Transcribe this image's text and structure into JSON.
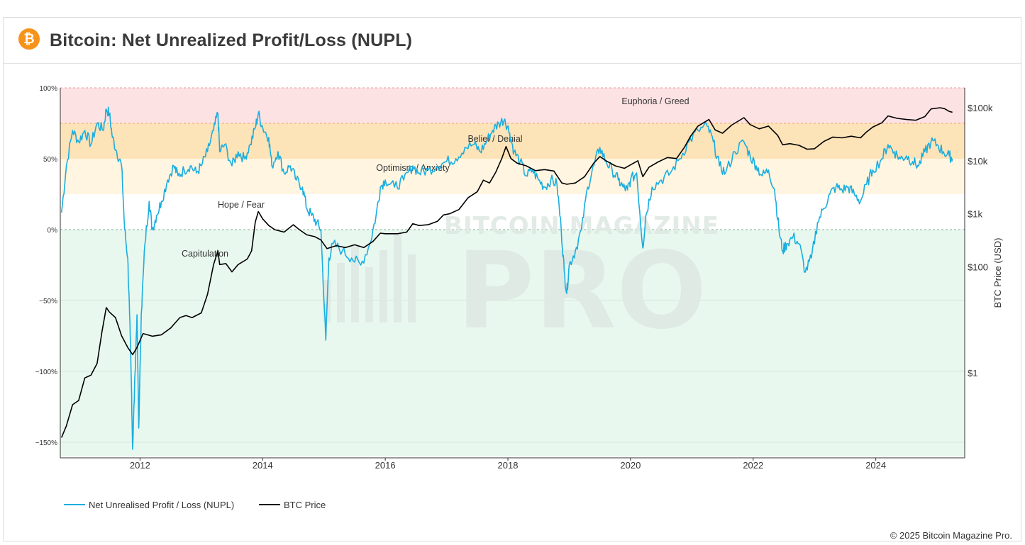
{
  "header": {
    "logo_icon": "bitcoin-icon",
    "logo_glyph": "₿",
    "title": "Bitcoin: Net Unrealized Profit/Loss (NUPL)"
  },
  "footer": {
    "copyright": "© 2025 Bitcoin Magazine Pro."
  },
  "colors": {
    "nupl": "#1aaee0",
    "price": "#000000",
    "euphoria": "#fde2e4",
    "belief": "#fde3b8",
    "optimism": "#fff5e1",
    "hope": "#ffffff",
    "capitulation": "#e9f8ef",
    "watermark": "#dfe9e4"
  },
  "chart_data": {
    "type": "line",
    "title": "Bitcoin: Net Unrealized Profit/Loss (NUPL)",
    "watermark": [
      "BITCOIN MAGAZINE",
      "PRO"
    ],
    "x_axis": {
      "ticks": [
        "2012",
        "2014",
        "2016",
        "2018",
        "2020",
        "2022",
        "2024"
      ],
      "range": [
        2010.7,
        2025.45
      ]
    },
    "y_left": {
      "ticks": [
        "100%",
        "50%",
        "0%",
        "−50%",
        "−100%",
        "−150%"
      ],
      "range": [
        -1.6,
        1.0
      ]
    },
    "y_right": {
      "label": "BTC Price (USD)",
      "ticks": [
        "$100k",
        "$10k",
        "$1k",
        "$100",
        "$1"
      ],
      "type": "log",
      "range_log10": [
        -1.55,
        5.4
      ]
    },
    "zones": [
      {
        "name": "Euphoria / Greed",
        "from": 0.75,
        "to": 1.0
      },
      {
        "name": "Belief / Denial",
        "from": 0.5,
        "to": 0.75
      },
      {
        "name": "Optimism / Anxiety",
        "from": 0.25,
        "to": 0.5
      },
      {
        "name": "Hope / Fear",
        "from": 0.0,
        "to": 0.25
      },
      {
        "name": "Capitulation",
        "from": -1.6,
        "to": 0.0
      }
    ],
    "legend": [
      {
        "name": "Net Unrealised Profit / Loss (NUPL)",
        "color": "#1aaee0"
      },
      {
        "name": "BTC Price",
        "color": "#000000"
      }
    ],
    "series": [
      {
        "name": "Net Unrealised Profit / Loss (NUPL)",
        "axis": "left",
        "points": [
          [
            2010.72,
            0.12
          ],
          [
            2010.8,
            0.45
          ],
          [
            2010.9,
            0.7
          ],
          [
            2011.0,
            0.62
          ],
          [
            2011.1,
            0.7
          ],
          [
            2011.2,
            0.6
          ],
          [
            2011.3,
            0.75
          ],
          [
            2011.4,
            0.7
          ],
          [
            2011.45,
            0.85
          ],
          [
            2011.5,
            0.82
          ],
          [
            2011.55,
            0.65
          ],
          [
            2011.62,
            0.55
          ],
          [
            2011.7,
            0.45
          ],
          [
            2011.75,
            0.0
          ],
          [
            2011.8,
            -0.2
          ],
          [
            2011.83,
            -0.6
          ],
          [
            2011.86,
            -1.1
          ],
          [
            2011.88,
            -1.55
          ],
          [
            2011.92,
            -1.0
          ],
          [
            2011.95,
            -0.6
          ],
          [
            2011.98,
            -1.4
          ],
          [
            2012.02,
            -0.6
          ],
          [
            2012.08,
            -0.1
          ],
          [
            2012.15,
            0.2
          ],
          [
            2012.2,
            0.0
          ],
          [
            2012.27,
            0.1
          ],
          [
            2012.35,
            0.2
          ],
          [
            2012.45,
            0.35
          ],
          [
            2012.55,
            0.45
          ],
          [
            2012.62,
            0.38
          ],
          [
            2012.72,
            0.42
          ],
          [
            2012.82,
            0.45
          ],
          [
            2012.92,
            0.4
          ],
          [
            2013.0,
            0.45
          ],
          [
            2013.1,
            0.55
          ],
          [
            2013.2,
            0.7
          ],
          [
            2013.27,
            0.82
          ],
          [
            2013.3,
            0.55
          ],
          [
            2013.38,
            0.6
          ],
          [
            2013.5,
            0.45
          ],
          [
            2013.6,
            0.55
          ],
          [
            2013.7,
            0.5
          ],
          [
            2013.8,
            0.6
          ],
          [
            2013.88,
            0.72
          ],
          [
            2013.93,
            0.82
          ],
          [
            2014.0,
            0.72
          ],
          [
            2014.1,
            0.65
          ],
          [
            2014.15,
            0.45
          ],
          [
            2014.25,
            0.55
          ],
          [
            2014.35,
            0.4
          ],
          [
            2014.45,
            0.45
          ],
          [
            2014.55,
            0.35
          ],
          [
            2014.65,
            0.3
          ],
          [
            2014.72,
            0.15
          ],
          [
            2014.8,
            0.1
          ],
          [
            2014.88,
            0.05
          ],
          [
            2014.95,
            0.0
          ],
          [
            2015.03,
            -0.78
          ],
          [
            2015.08,
            -0.2
          ],
          [
            2015.15,
            -0.1
          ],
          [
            2015.3,
            -0.15
          ],
          [
            2015.45,
            -0.2
          ],
          [
            2015.6,
            -0.25
          ],
          [
            2015.75,
            -0.1
          ],
          [
            2015.85,
            0.1
          ],
          [
            2015.92,
            0.3
          ],
          [
            2016.0,
            0.35
          ],
          [
            2016.15,
            0.3
          ],
          [
            2016.3,
            0.35
          ],
          [
            2016.45,
            0.45
          ],
          [
            2016.55,
            0.4
          ],
          [
            2016.7,
            0.42
          ],
          [
            2016.85,
            0.45
          ],
          [
            2017.0,
            0.48
          ],
          [
            2017.15,
            0.5
          ],
          [
            2017.3,
            0.58
          ],
          [
            2017.45,
            0.6
          ],
          [
            2017.55,
            0.55
          ],
          [
            2017.65,
            0.62
          ],
          [
            2017.75,
            0.7
          ],
          [
            2017.85,
            0.75
          ],
          [
            2017.95,
            0.78
          ],
          [
            2018.03,
            0.68
          ],
          [
            2018.1,
            0.55
          ],
          [
            2018.2,
            0.48
          ],
          [
            2018.3,
            0.38
          ],
          [
            2018.4,
            0.42
          ],
          [
            2018.5,
            0.35
          ],
          [
            2018.6,
            0.3
          ],
          [
            2018.7,
            0.35
          ],
          [
            2018.8,
            0.32
          ],
          [
            2018.87,
            0.0
          ],
          [
            2018.92,
            -0.3
          ],
          [
            2018.96,
            -0.45
          ],
          [
            2019.0,
            -0.25
          ],
          [
            2019.1,
            -0.15
          ],
          [
            2019.2,
            0.0
          ],
          [
            2019.3,
            0.3
          ],
          [
            2019.4,
            0.45
          ],
          [
            2019.5,
            0.58
          ],
          [
            2019.6,
            0.48
          ],
          [
            2019.7,
            0.42
          ],
          [
            2019.8,
            0.35
          ],
          [
            2019.88,
            0.3
          ],
          [
            2019.95,
            0.28
          ],
          [
            2020.0,
            0.35
          ],
          [
            2020.1,
            0.4
          ],
          [
            2020.2,
            -0.13
          ],
          [
            2020.25,
            0.1
          ],
          [
            2020.35,
            0.3
          ],
          [
            2020.5,
            0.35
          ],
          [
            2020.65,
            0.4
          ],
          [
            2020.8,
            0.5
          ],
          [
            2020.95,
            0.62
          ],
          [
            2021.1,
            0.7
          ],
          [
            2021.25,
            0.73
          ],
          [
            2021.35,
            0.62
          ],
          [
            2021.45,
            0.45
          ],
          [
            2021.55,
            0.4
          ],
          [
            2021.7,
            0.55
          ],
          [
            2021.85,
            0.62
          ],
          [
            2021.95,
            0.52
          ],
          [
            2022.05,
            0.45
          ],
          [
            2022.15,
            0.38
          ],
          [
            2022.25,
            0.42
          ],
          [
            2022.35,
            0.28
          ],
          [
            2022.42,
            0.0
          ],
          [
            2022.48,
            -0.15
          ],
          [
            2022.55,
            -0.1
          ],
          [
            2022.65,
            -0.05
          ],
          [
            2022.75,
            -0.1
          ],
          [
            2022.85,
            -0.3
          ],
          [
            2022.95,
            -0.2
          ],
          [
            2023.05,
            0.05
          ],
          [
            2023.15,
            0.15
          ],
          [
            2023.25,
            0.25
          ],
          [
            2023.35,
            0.3
          ],
          [
            2023.45,
            0.28
          ],
          [
            2023.55,
            0.3
          ],
          [
            2023.65,
            0.25
          ],
          [
            2023.75,
            0.2
          ],
          [
            2023.85,
            0.32
          ],
          [
            2023.95,
            0.42
          ],
          [
            2024.1,
            0.5
          ],
          [
            2024.2,
            0.6
          ],
          [
            2024.3,
            0.55
          ],
          [
            2024.4,
            0.5
          ],
          [
            2024.5,
            0.52
          ],
          [
            2024.6,
            0.48
          ],
          [
            2024.7,
            0.45
          ],
          [
            2024.8,
            0.55
          ],
          [
            2024.9,
            0.62
          ],
          [
            2025.0,
            0.6
          ],
          [
            2025.1,
            0.55
          ],
          [
            2025.2,
            0.52
          ],
          [
            2025.25,
            0.5
          ]
        ]
      },
      {
        "name": "BTC Price",
        "axis": "right",
        "points": [
          [
            2010.72,
            0.06
          ],
          [
            2010.8,
            0.1
          ],
          [
            2010.9,
            0.25
          ],
          [
            2011.0,
            0.3
          ],
          [
            2011.1,
            0.8
          ],
          [
            2011.2,
            0.9
          ],
          [
            2011.3,
            1.5
          ],
          [
            2011.38,
            6.0
          ],
          [
            2011.45,
            17.0
          ],
          [
            2011.5,
            14.0
          ],
          [
            2011.6,
            11.0
          ],
          [
            2011.7,
            5.0
          ],
          [
            2011.8,
            3.0
          ],
          [
            2011.88,
            2.2
          ],
          [
            2011.95,
            3.0
          ],
          [
            2012.05,
            5.5
          ],
          [
            2012.2,
            4.9
          ],
          [
            2012.35,
            5.2
          ],
          [
            2012.5,
            7.0
          ],
          [
            2012.65,
            11.0
          ],
          [
            2012.75,
            12.0
          ],
          [
            2012.85,
            11.0
          ],
          [
            2013.0,
            13.5
          ],
          [
            2013.1,
            30.0
          ],
          [
            2013.2,
            110.0
          ],
          [
            2013.27,
            200.0
          ],
          [
            2013.3,
            110.0
          ],
          [
            2013.4,
            115.0
          ],
          [
            2013.5,
            80.0
          ],
          [
            2013.6,
            110.0
          ],
          [
            2013.75,
            140.0
          ],
          [
            2013.82,
            200.0
          ],
          [
            2013.88,
            700.0
          ],
          [
            2013.93,
            1100.0
          ],
          [
            2014.0,
            800.0
          ],
          [
            2014.1,
            600.0
          ],
          [
            2014.2,
            500.0
          ],
          [
            2014.35,
            450.0
          ],
          [
            2014.5,
            620.0
          ],
          [
            2014.6,
            500.0
          ],
          [
            2014.72,
            400.0
          ],
          [
            2014.85,
            370.0
          ],
          [
            2014.95,
            320.0
          ],
          [
            2015.05,
            220.0
          ],
          [
            2015.2,
            250.0
          ],
          [
            2015.35,
            230.0
          ],
          [
            2015.5,
            260.0
          ],
          [
            2015.65,
            230.0
          ],
          [
            2015.8,
            300.0
          ],
          [
            2015.92,
            430.0
          ],
          [
            2016.0,
            420.0
          ],
          [
            2016.2,
            420.0
          ],
          [
            2016.35,
            450.0
          ],
          [
            2016.45,
            650.0
          ],
          [
            2016.55,
            600.0
          ],
          [
            2016.7,
            620.0
          ],
          [
            2016.85,
            720.0
          ],
          [
            2016.95,
            950.0
          ],
          [
            2017.05,
            1000.0
          ],
          [
            2017.2,
            1200.0
          ],
          [
            2017.35,
            2000.0
          ],
          [
            2017.5,
            2600.0
          ],
          [
            2017.6,
            4300.0
          ],
          [
            2017.7,
            3800.0
          ],
          [
            2017.8,
            6000.0
          ],
          [
            2017.9,
            11000.0
          ],
          [
            2017.97,
            18500.0
          ],
          [
            2018.05,
            11000.0
          ],
          [
            2018.15,
            9000.0
          ],
          [
            2018.3,
            8000.0
          ],
          [
            2018.45,
            6500.0
          ],
          [
            2018.6,
            6800.0
          ],
          [
            2018.75,
            6400.0
          ],
          [
            2018.88,
            3800.0
          ],
          [
            2018.96,
            3600.0
          ],
          [
            2019.1,
            3800.0
          ],
          [
            2019.25,
            5000.0
          ],
          [
            2019.4,
            9000.0
          ],
          [
            2019.5,
            12000.0
          ],
          [
            2019.6,
            10000.0
          ],
          [
            2019.75,
            8000.0
          ],
          [
            2019.9,
            7200.0
          ],
          [
            2020.05,
            9000.0
          ],
          [
            2020.12,
            10000.0
          ],
          [
            2020.2,
            5000.0
          ],
          [
            2020.3,
            7500.0
          ],
          [
            2020.45,
            9500.0
          ],
          [
            2020.6,
            11500.0
          ],
          [
            2020.75,
            11000.0
          ],
          [
            2020.88,
            18000.0
          ],
          [
            2020.98,
            29000.0
          ],
          [
            2021.1,
            45000.0
          ],
          [
            2021.28,
            60000.0
          ],
          [
            2021.38,
            38000.0
          ],
          [
            2021.5,
            33000.0
          ],
          [
            2021.65,
            47000.0
          ],
          [
            2021.85,
            65000.0
          ],
          [
            2021.95,
            48000.0
          ],
          [
            2022.1,
            40000.0
          ],
          [
            2022.25,
            45000.0
          ],
          [
            2022.4,
            30000.0
          ],
          [
            2022.48,
            20000.0
          ],
          [
            2022.6,
            21000.0
          ],
          [
            2022.75,
            19500.0
          ],
          [
            2022.88,
            16500.0
          ],
          [
            2023.0,
            16800.0
          ],
          [
            2023.15,
            23000.0
          ],
          [
            2023.3,
            28000.0
          ],
          [
            2023.45,
            27000.0
          ],
          [
            2023.6,
            29000.0
          ],
          [
            2023.75,
            27000.0
          ],
          [
            2023.85,
            35000.0
          ],
          [
            2023.95,
            43000.0
          ],
          [
            2024.1,
            52000.0
          ],
          [
            2024.2,
            70000.0
          ],
          [
            2024.35,
            63000.0
          ],
          [
            2024.5,
            60000.0
          ],
          [
            2024.65,
            58000.0
          ],
          [
            2024.8,
            68000.0
          ],
          [
            2024.9,
            95000.0
          ],
          [
            2025.05,
            100000.0
          ],
          [
            2025.12,
            96000.0
          ],
          [
            2025.2,
            85000.0
          ],
          [
            2025.25,
            82000.0
          ]
        ]
      }
    ]
  }
}
